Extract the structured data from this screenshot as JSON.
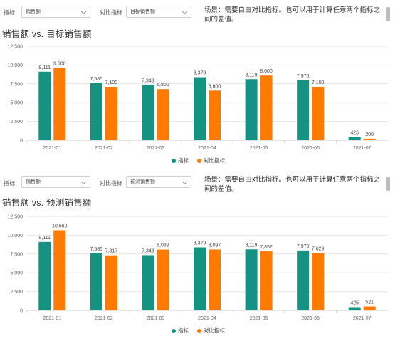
{
  "colors": {
    "series_a": "#149383",
    "series_b": "#FF7A00",
    "grid": "#e6e6e6",
    "axis_text": "#666666"
  },
  "panels": [
    {
      "filter": {
        "metric_label": "指标",
        "metric_value": "销售额",
        "compare_label": "对比指标",
        "compare_value": "目标销售额"
      },
      "note": "场景：需要自由对比指标。也可以用于计算任意两个指标之间的差值。",
      "title": "销售额 vs. 目标销售额",
      "chart_data": {
        "type": "bar",
        "categories": [
          "2021-01",
          "2021-02",
          "2021-03",
          "2021-04",
          "2021-05",
          "2021-06",
          "2021-07"
        ],
        "series": [
          {
            "name": "指标",
            "values": [
              9111,
              7585,
              7343,
              8379,
              8119,
              7970,
              425
            ],
            "labels": [
              "9,111",
              "7,585",
              "7,343",
              "8,379",
              "8,119",
              "7,970",
              "425"
            ]
          },
          {
            "name": "对比指标",
            "values": [
              9600,
              7100,
              6800,
              6600,
              8600,
              7100,
              200
            ],
            "labels": [
              "9,600",
              "7,100",
              "6,800",
              "6,600",
              "8,600",
              "7,100",
              "200"
            ]
          }
        ],
        "ylim": [
          0,
          12500
        ],
        "yticks": [
          "0",
          "2,500",
          "5,000",
          "7,500",
          "10,000",
          "12,500"
        ],
        "grid": true,
        "legend_position": "bottom-center"
      }
    },
    {
      "filter": {
        "metric_label": "指标",
        "metric_value": "销售额",
        "compare_label": "对比指标",
        "compare_value": "预测销售额"
      },
      "note": "场景：需要自由对比指标。也可以用于计算任意两个指标之间的差值。",
      "title": "销售额 vs. 预测销售额",
      "chart_data": {
        "type": "bar",
        "categories": [
          "2021-01",
          "2021-02",
          "2021-03",
          "2021-04",
          "2021-05",
          "2021-06",
          "2021-07"
        ],
        "series": [
          {
            "name": "指标",
            "values": [
              9111,
              7585,
              7343,
              8379,
              8119,
              7970,
              425
            ],
            "labels": [
              "9,111",
              "7,585",
              "7,343",
              "8,379",
              "8,119",
              "7,970",
              "425"
            ]
          },
          {
            "name": "对比指标",
            "values": [
              10660,
              7317,
              8089,
              8097,
              7857,
              7629,
              521
            ],
            "labels": [
              "10,660",
              "7,317",
              "8,089",
              "8,097",
              "7,857",
              "7,629",
              "521"
            ]
          }
        ],
        "ylim": [
          0,
          12500
        ],
        "yticks": [
          "0",
          "2,500",
          "5,000",
          "7,500",
          "10,000",
          "12,500"
        ],
        "grid": true,
        "legend_position": "bottom-center"
      }
    }
  ]
}
